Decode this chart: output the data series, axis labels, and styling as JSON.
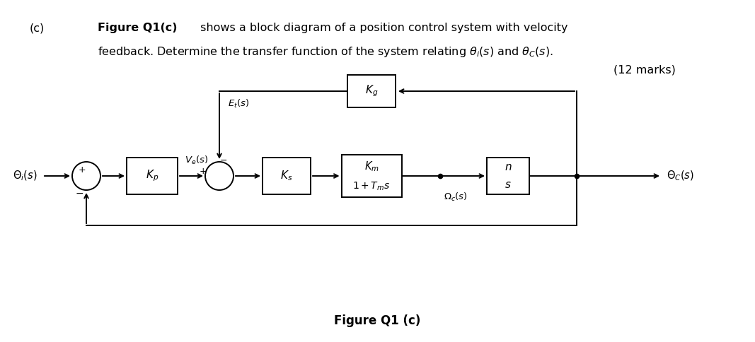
{
  "title_label": "(c)",
  "fig_label_bold": "Figure Q1(c)",
  "fig_label_rest": " shows a block diagram of a position control system with velocity",
  "line2": "feedback. Determine the transfer function of the system relating ",
  "line2_math1": "\\theta_i(s)",
  "line2_mid": " and ",
  "line2_math2": "\\theta_C(s).",
  "marks": "(12 marks)",
  "caption": "Figure Q1 (c)",
  "bg_color": "#ffffff"
}
